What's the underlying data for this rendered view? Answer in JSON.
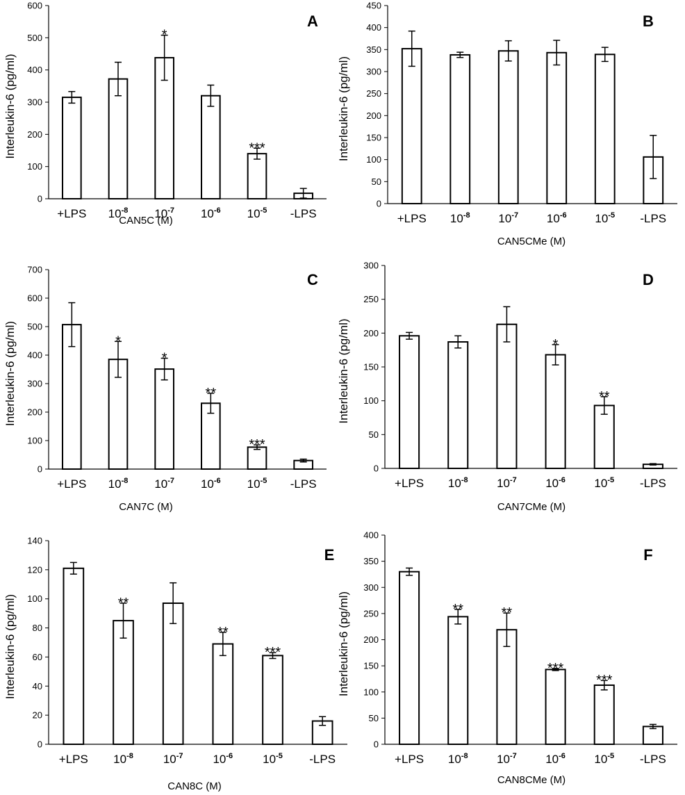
{
  "chart_data": [
    {
      "panel": "A",
      "type": "bar",
      "ylabel": "Interleukin-6 (pg/ml)",
      "xlabel": "CAN5C (M)",
      "ylim": [
        0,
        600
      ],
      "yticks": [
        0,
        100,
        200,
        300,
        400,
        500,
        600
      ],
      "categories": [
        {
          "base": "+LPS",
          "exp": ""
        },
        {
          "base": "10",
          "exp": "-8"
        },
        {
          "base": "10",
          "exp": "-7"
        },
        {
          "base": "10",
          "exp": "-6"
        },
        {
          "base": "10",
          "exp": "-5"
        },
        {
          "base": "-LPS",
          "exp": ""
        }
      ],
      "values": [
        315,
        372,
        438,
        320,
        140,
        17
      ],
      "errors": [
        18,
        52,
        70,
        33,
        17,
        15
      ],
      "significance": [
        "",
        "",
        "*",
        "",
        "***",
        ""
      ]
    },
    {
      "panel": "B",
      "type": "bar",
      "ylabel": "Interleukin-6 (pg/ml)",
      "xlabel": "CAN5CMe (M)",
      "ylim": [
        0,
        450
      ],
      "yticks": [
        0,
        50,
        100,
        150,
        200,
        250,
        300,
        350,
        400,
        450
      ],
      "categories": [
        {
          "base": "+LPS",
          "exp": ""
        },
        {
          "base": "10",
          "exp": "-8"
        },
        {
          "base": "10",
          "exp": "-7"
        },
        {
          "base": "10",
          "exp": "-6"
        },
        {
          "base": "10",
          "exp": "-5"
        },
        {
          "base": "-LPS",
          "exp": ""
        }
      ],
      "values": [
        352,
        338,
        347,
        343,
        339,
        106
      ],
      "errors": [
        40,
        6,
        23,
        28,
        16,
        49
      ],
      "significance": [
        "",
        "",
        "",
        "",
        "",
        ""
      ]
    },
    {
      "panel": "C",
      "type": "bar",
      "ylabel": "Interleukin-6 (pg/ml)",
      "xlabel": "CAN7C (M)",
      "ylim": [
        0,
        700
      ],
      "yticks": [
        0,
        100,
        200,
        300,
        400,
        500,
        600,
        700
      ],
      "categories": [
        {
          "base": "+LPS",
          "exp": ""
        },
        {
          "base": "10",
          "exp": "-8"
        },
        {
          "base": "10",
          "exp": "-7"
        },
        {
          "base": "10",
          "exp": "-6"
        },
        {
          "base": "10",
          "exp": "-5"
        },
        {
          "base": "-LPS",
          "exp": ""
        }
      ],
      "values": [
        507,
        385,
        351,
        231,
        77,
        30
      ],
      "errors": [
        77,
        63,
        38,
        35,
        8,
        5
      ],
      "significance": [
        "",
        "*",
        "*",
        "**",
        "***",
        ""
      ]
    },
    {
      "panel": "D",
      "type": "bar",
      "ylabel": "Interleukin-6 (pg/ml)",
      "xlabel": "CAN7CMe (M)",
      "ylim": [
        0,
        300
      ],
      "yticks": [
        0,
        50,
        100,
        150,
        200,
        250,
        300
      ],
      "categories": [
        {
          "base": "+LPS",
          "exp": ""
        },
        {
          "base": "10",
          "exp": "-8"
        },
        {
          "base": "10",
          "exp": "-7"
        },
        {
          "base": "10",
          "exp": "-6"
        },
        {
          "base": "10",
          "exp": "-5"
        },
        {
          "base": "-LPS",
          "exp": ""
        }
      ],
      "values": [
        196,
        187,
        213,
        168,
        93,
        6
      ],
      "errors": [
        5,
        9,
        26,
        15,
        13,
        1
      ],
      "significance": [
        "",
        "",
        "",
        "*",
        "**",
        ""
      ]
    },
    {
      "panel": "E",
      "type": "bar",
      "ylabel": "Interleukin-6 (pg/ml)",
      "xlabel": "CAN8C (M)",
      "ylim": [
        0,
        140
      ],
      "yticks": [
        0,
        20,
        40,
        60,
        80,
        100,
        120,
        140
      ],
      "categories": [
        {
          "base": "+LPS",
          "exp": ""
        },
        {
          "base": "10",
          "exp": "-8"
        },
        {
          "base": "10",
          "exp": "-7"
        },
        {
          "base": "10",
          "exp": "-6"
        },
        {
          "base": "10",
          "exp": "-5"
        },
        {
          "base": "-LPS",
          "exp": ""
        }
      ],
      "values": [
        121,
        85,
        97,
        69,
        61,
        16
      ],
      "errors": [
        4,
        12,
        14,
        8,
        2,
        3
      ],
      "significance": [
        "",
        "**",
        "",
        "**",
        "***",
        ""
      ]
    },
    {
      "panel": "F",
      "type": "bar",
      "ylabel": "Interleukin-6 (pg/ml)",
      "xlabel": "CAN8CMe (M)",
      "ylim": [
        0,
        400
      ],
      "yticks": [
        0,
        50,
        100,
        150,
        200,
        250,
        300,
        350,
        400
      ],
      "categories": [
        {
          "base": "+LPS",
          "exp": ""
        },
        {
          "base": "10",
          "exp": "-8"
        },
        {
          "base": "10",
          "exp": "-7"
        },
        {
          "base": "10",
          "exp": "-6"
        },
        {
          "base": "10",
          "exp": "-5"
        },
        {
          "base": "-LPS",
          "exp": ""
        }
      ],
      "values": [
        330,
        244,
        219,
        143,
        113,
        34
      ],
      "errors": [
        7,
        14,
        32,
        2,
        9,
        4
      ],
      "significance": [
        "",
        "**",
        "**",
        "***",
        "***",
        ""
      ]
    }
  ]
}
